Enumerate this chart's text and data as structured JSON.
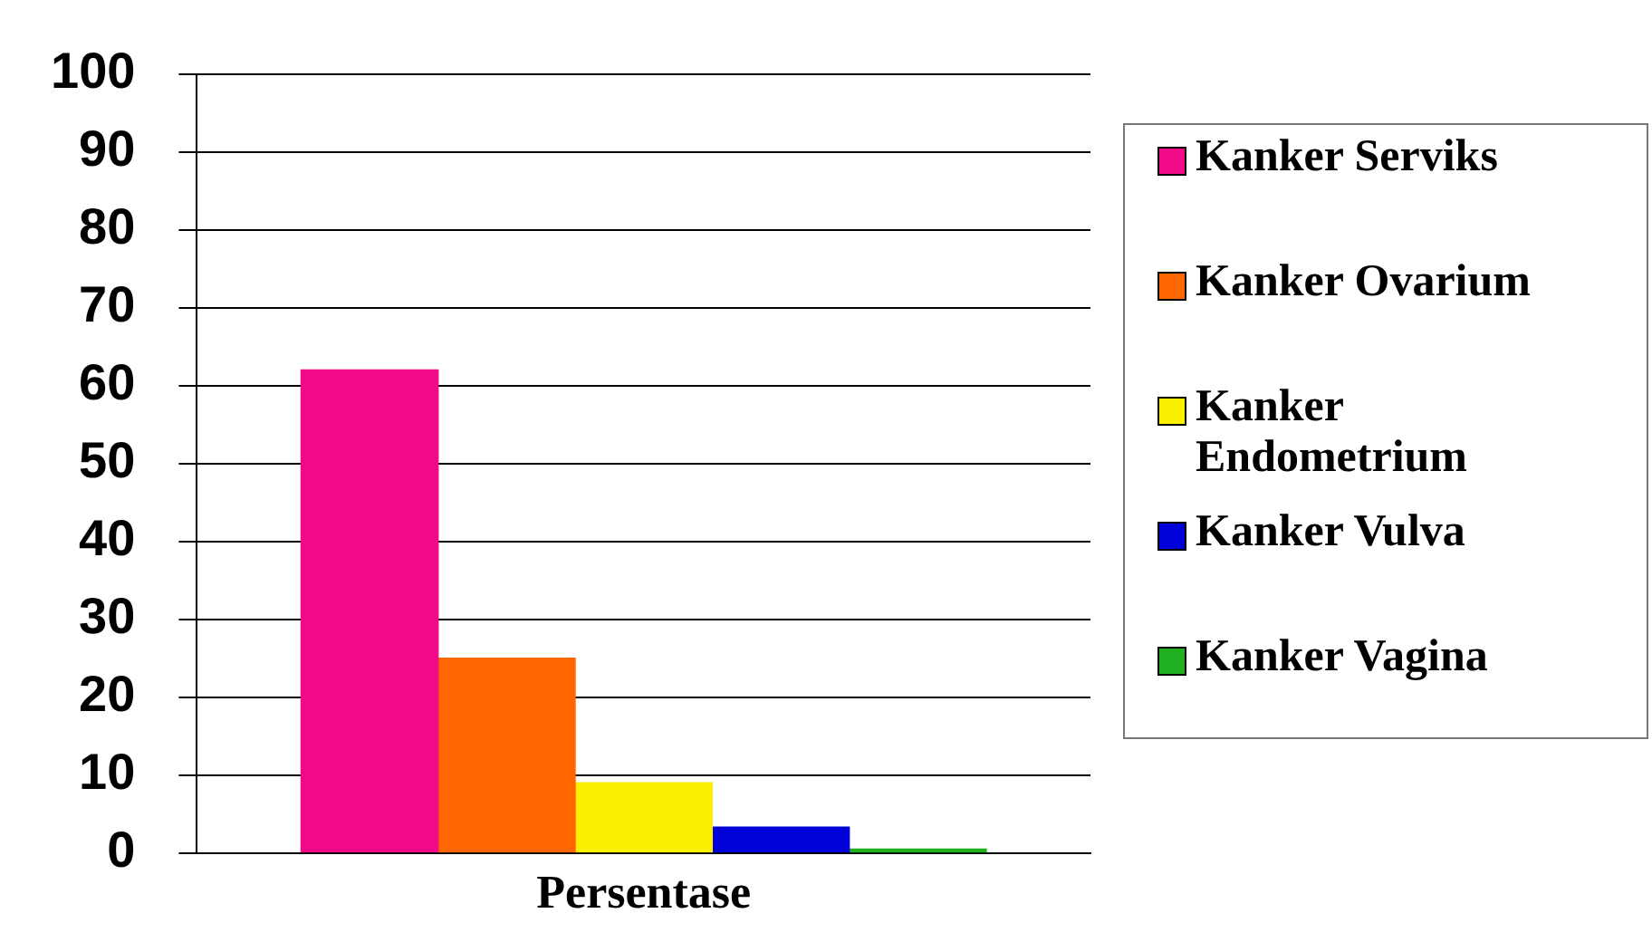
{
  "chart_data": {
    "type": "bar",
    "xlabel": "Persentase",
    "categories": [
      null,
      null,
      null,
      null,
      null
    ],
    "stacked": true,
    "series": [
      {
        "name": "Kanker Serviks",
        "color": "#f00a88",
        "values": [
          62,
          null,
          null,
          null,
          null
        ]
      },
      {
        "name": "Kanker Ovarium",
        "color": "#ff6600",
        "values": [
          null,
          25,
          null,
          null,
          null
        ]
      },
      {
        "name": "Kanker Endometrium",
        "color": "#faf000",
        "values": [
          null,
          null,
          9,
          null,
          null
        ]
      },
      {
        "name": "Kanker Vulva",
        "color": "#0000d8",
        "values": [
          null,
          null,
          null,
          3.3,
          null
        ]
      },
      {
        "name": "Kanker Vagina",
        "color": "#20b020",
        "values": [
          null,
          null,
          null,
          null,
          0.5
        ]
      }
    ],
    "ylim": [
      0,
      100
    ],
    "yticks": [
      0,
      10,
      20,
      30,
      40,
      50,
      60,
      70,
      80,
      90,
      100
    ],
    "grid": "y",
    "legend": "right"
  }
}
